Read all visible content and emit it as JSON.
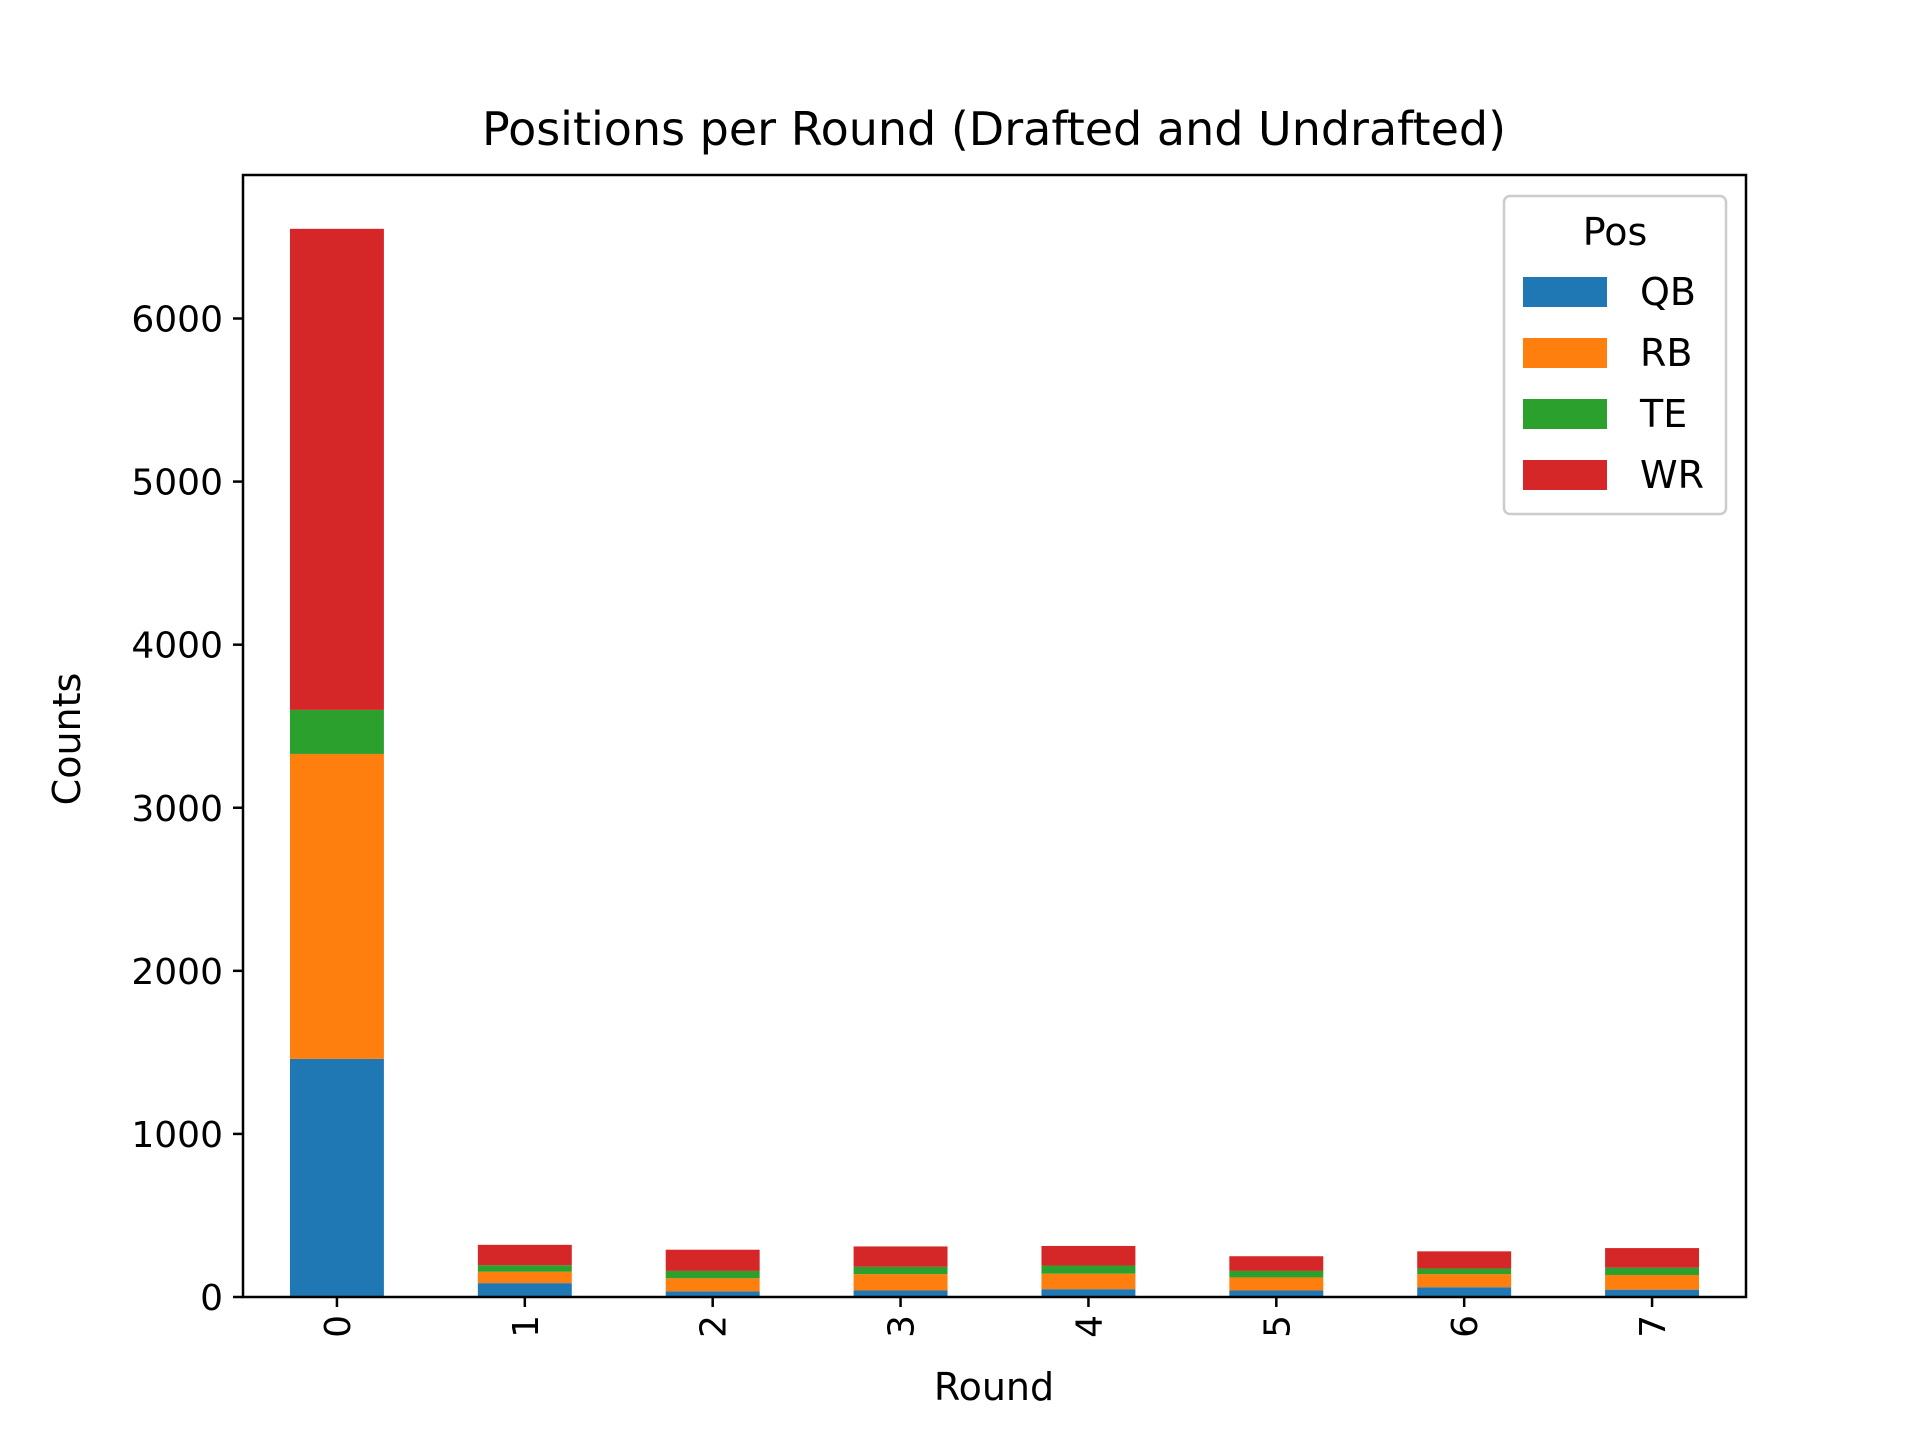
{
  "chart_data": {
    "type": "bar",
    "stacked": true,
    "title": "Positions per Round (Drafted and Undrafted)",
    "xlabel": "Round",
    "ylabel": "Counts",
    "categories": [
      "0",
      "1",
      "2",
      "3",
      "4",
      "5",
      "6",
      "7"
    ],
    "ylim": [
      0,
      6880
    ],
    "yticks": [
      0,
      1000,
      2000,
      3000,
      4000,
      5000,
      6000
    ],
    "grid": false,
    "legend": {
      "title": "Pos",
      "placement": "upper-right"
    },
    "series": [
      {
        "name": "QB",
        "color": "#1f77b4",
        "values": [
          1460,
          85,
          35,
          40,
          48,
          40,
          60,
          45
        ]
      },
      {
        "name": "RB",
        "color": "#ff7f0e",
        "values": [
          1870,
          70,
          80,
          100,
          95,
          80,
          80,
          90
        ]
      },
      {
        "name": "TE",
        "color": "#2ca02c",
        "values": [
          270,
          40,
          45,
          45,
          50,
          40,
          35,
          45
        ]
      },
      {
        "name": "WR",
        "color": "#d62728",
        "values": [
          2950,
          125,
          130,
          125,
          120,
          90,
          105,
          120
        ]
      }
    ]
  }
}
